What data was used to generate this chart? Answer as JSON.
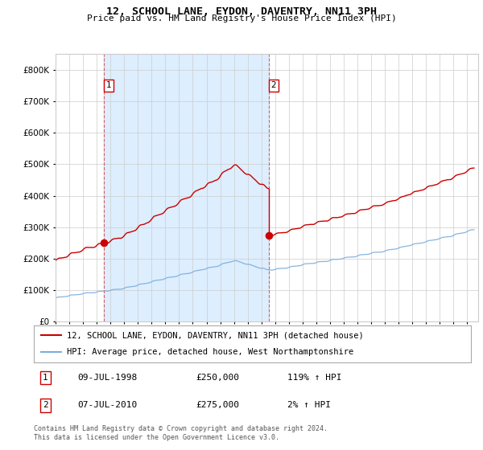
{
  "title": "12, SCHOOL LANE, EYDON, DAVENTRY, NN11 3PH",
  "subtitle": "Price paid vs. HM Land Registry's House Price Index (HPI)",
  "legend_line1": "12, SCHOOL LANE, EYDON, DAVENTRY, NN11 3PH (detached house)",
  "legend_line2": "HPI: Average price, detached house, West Northamptonshire",
  "transaction1_date": "09-JUL-1998",
  "transaction1_price": 250000,
  "transaction1_hpi": "119% ↑ HPI",
  "transaction2_date": "07-JUL-2010",
  "transaction2_price": 275000,
  "transaction2_hpi": "2% ↑ HPI",
  "footer": "Contains HM Land Registry data © Crown copyright and database right 2024.\nThis data is licensed under the Open Government Licence v3.0.",
  "red_color": "#cc0000",
  "blue_color": "#7aaddb",
  "bg_shaded": "#ddeeff",
  "grid_color": "#cccccc",
  "ylim": [
    0,
    850000
  ],
  "yticks": [
    0,
    100000,
    200000,
    300000,
    400000,
    500000,
    600000,
    700000,
    800000
  ],
  "t1": 1998.53,
  "t2": 2010.53,
  "price1": 250000,
  "price2": 275000
}
